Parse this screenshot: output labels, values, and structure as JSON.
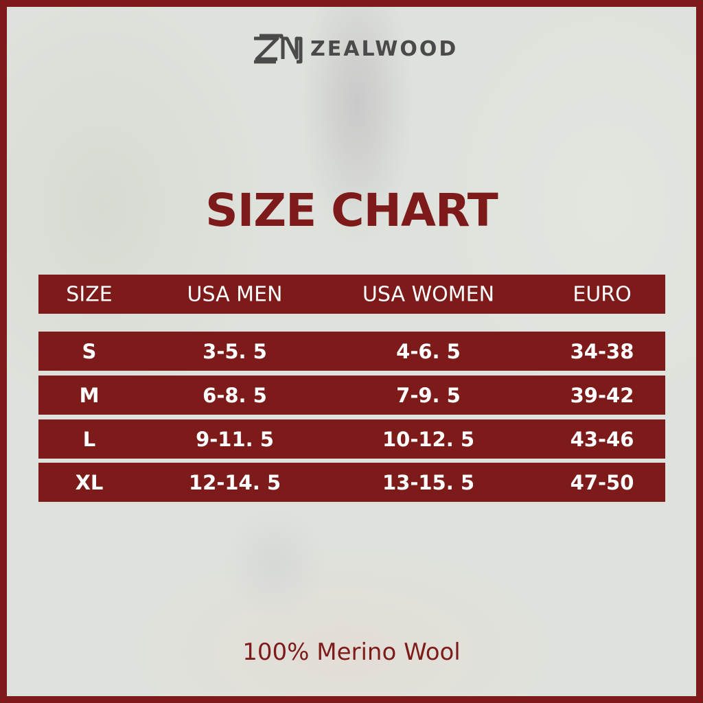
{
  "brand": {
    "name": "ZEALWOOD",
    "color": "#7d1b1b"
  },
  "title": "SIZE CHART",
  "table": {
    "headers": [
      "SIZE",
      "USA MEN",
      "USA WOMEN",
      "EURO"
    ],
    "rows": [
      [
        "S",
        "3-5. 5",
        "4-6. 5",
        "34-38"
      ],
      [
        "M",
        "6-8. 5",
        "7-9. 5",
        "39-42"
      ],
      [
        "L",
        "9-11. 5",
        "10-12. 5",
        "43-46"
      ],
      [
        "XL",
        "12-14. 5",
        "13-15. 5",
        "47-50"
      ]
    ]
  },
  "footer": "100% Merino Wool"
}
